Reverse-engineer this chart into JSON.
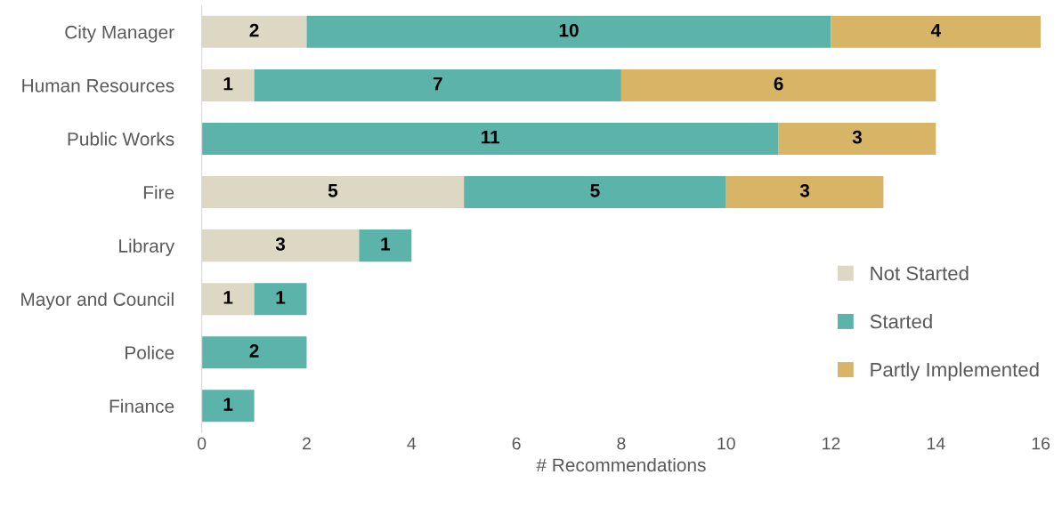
{
  "chart_data": {
    "type": "bar",
    "orientation": "horizontal",
    "stacked": true,
    "xlabel": "# Recommendations",
    "categories": [
      "City Manager",
      "Human Resources",
      "Public Works",
      "Fire",
      "Library",
      "Mayor and Council",
      "Police",
      "Finance"
    ],
    "series": [
      {
        "name": "Not Started",
        "color": "#ddd8c3",
        "values": [
          2,
          1,
          null,
          5,
          3,
          1,
          null,
          null
        ]
      },
      {
        "name": "Started",
        "color": "#5bb3aa",
        "values": [
          10,
          7,
          11,
          5,
          1,
          1,
          2,
          1
        ]
      },
      {
        "name": "Partly Implemented",
        "color": "#d8b467",
        "values": [
          4,
          6,
          3,
          3,
          null,
          null,
          null,
          null
        ]
      }
    ],
    "xlim": [
      0,
      16
    ],
    "xticks": [
      0,
      2,
      4,
      6,
      8,
      10,
      12,
      14,
      16
    ],
    "data_labels": true,
    "grid": false,
    "legend": "bottom right"
  }
}
